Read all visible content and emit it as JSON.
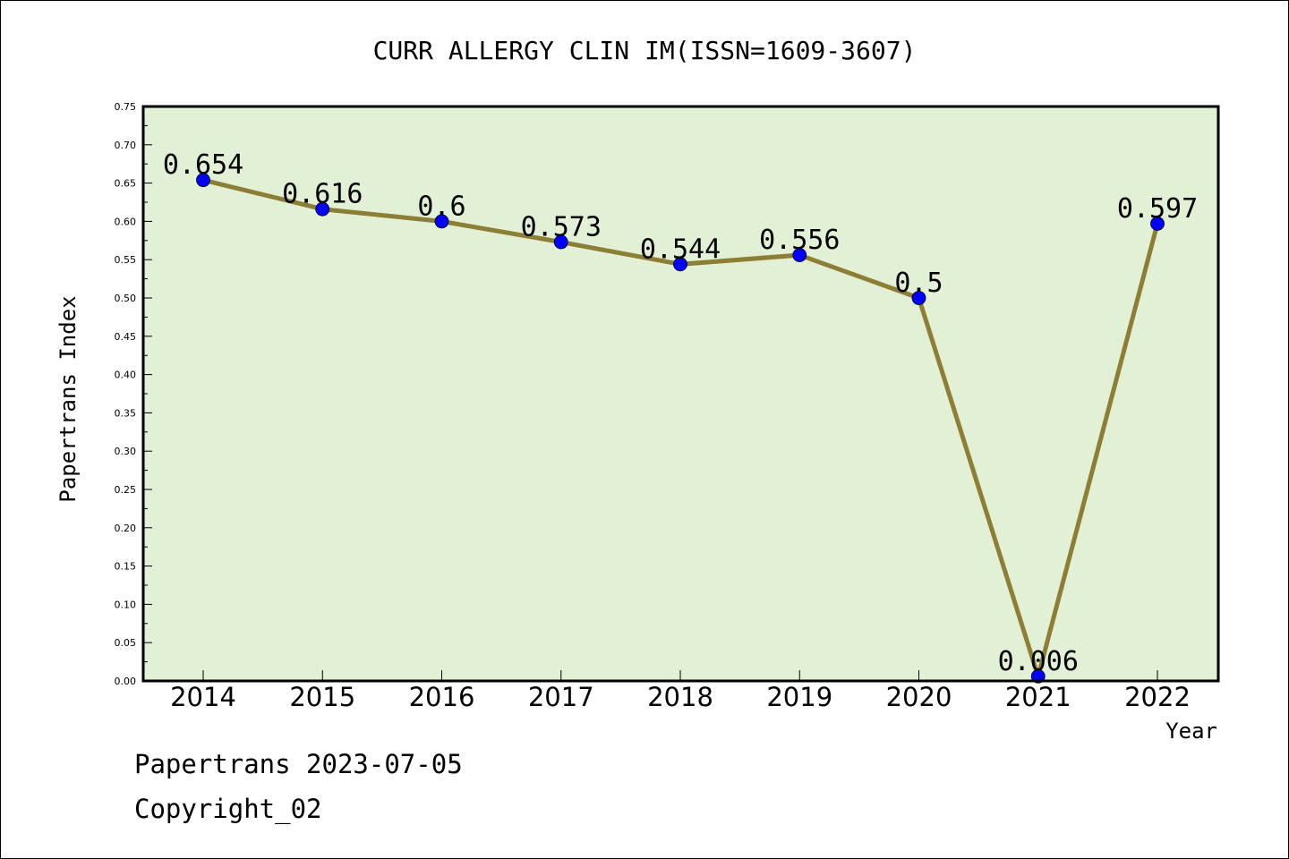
{
  "chart_data": {
    "type": "line",
    "title": "CURR ALLERGY CLIN IM(ISSN=1609-3607)",
    "xlabel": "Year",
    "ylabel": "Papertrans Index",
    "categories": [
      "2014",
      "2015",
      "2016",
      "2017",
      "2018",
      "2019",
      "2020",
      "2021",
      "2022"
    ],
    "values": [
      0.654,
      0.616,
      0.6,
      0.573,
      0.544,
      0.556,
      0.5,
      0.006,
      0.597
    ],
    "data_labels": [
      "0.654",
      "0.616",
      "0.6",
      "0.573",
      "0.544",
      "0.556",
      "0.5",
      "0.006",
      "0.597"
    ],
    "ylim": [
      0,
      0.75
    ],
    "yticks": [
      "0.00",
      "0.05",
      "0.10",
      "0.15",
      "0.20",
      "0.25",
      "0.30",
      "0.35",
      "0.40",
      "0.45",
      "0.50",
      "0.55",
      "0.60",
      "0.65",
      "0.70",
      "0.75"
    ],
    "grid": false,
    "legend": "none",
    "colors": {
      "plot_background": "#e2f0d6",
      "line": "#8c7e34",
      "marker": "#0000ff"
    }
  },
  "footer": {
    "line1": "Papertrans 2023-07-05",
    "line2": "Copyright_02"
  }
}
